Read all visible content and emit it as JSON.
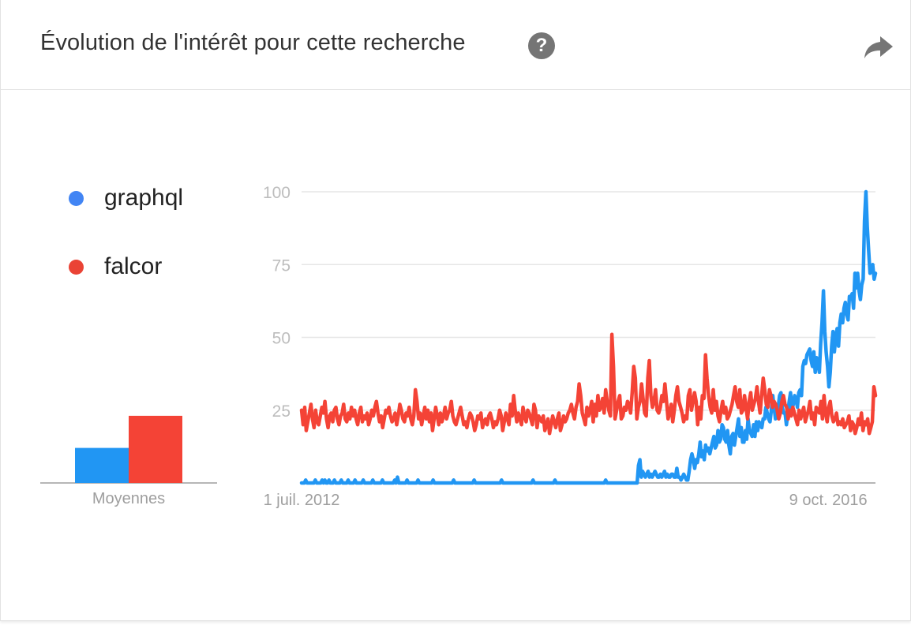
{
  "header": {
    "title": "Évolution de l'intérêt pour cette recherche",
    "help_glyph": "?",
    "help_icon": "help-circle-icon",
    "share_icon": "share-arrow-icon"
  },
  "legend": [
    {
      "label": "graphql",
      "color": "#4285F4"
    },
    {
      "label": "falcor",
      "color": "#EA4335"
    }
  ],
  "averages": {
    "label": "Moyennes",
    "values": [
      {
        "series": "graphql",
        "value": 12,
        "color": "#2196F3"
      },
      {
        "series": "falcor",
        "value": 23,
        "color": "#F44336"
      }
    ]
  },
  "chart_data": {
    "type": "line",
    "x_tick_labels": [
      "1 juil. 2012",
      "9 oct. 2016"
    ],
    "x_range": [
      "2012-07-01",
      "2017-02-26"
    ],
    "ylim": [
      0,
      100
    ],
    "yticks": [
      25,
      50,
      75,
      100
    ],
    "grid": true,
    "series": [
      {
        "name": "graphql",
        "color": "#2196F3",
        "values": [
          0,
          0,
          0,
          1,
          0,
          0,
          0,
          0,
          0,
          0,
          1,
          0,
          0,
          0,
          0,
          1,
          0,
          1,
          0,
          0,
          1,
          0,
          0,
          0,
          1,
          0,
          0,
          0,
          0,
          1,
          0,
          0,
          0,
          0,
          1,
          0,
          0,
          0,
          0,
          1,
          0,
          0,
          0,
          0,
          0,
          1,
          0,
          0,
          0,
          0,
          0,
          0,
          1,
          0,
          0,
          0,
          0,
          0,
          0,
          1,
          0,
          0,
          0,
          0,
          0,
          0,
          0,
          0,
          1,
          0,
          2,
          0,
          0,
          0,
          0,
          0,
          0,
          1,
          0,
          0,
          0,
          0,
          0,
          0,
          0,
          1,
          0,
          0,
          0,
          0,
          0,
          0,
          0,
          0,
          0,
          0,
          1,
          0,
          0,
          0,
          0,
          0,
          0,
          0,
          0,
          0,
          0,
          0,
          0,
          0,
          0,
          1,
          0,
          0,
          0,
          0,
          0,
          0,
          0,
          0,
          0,
          0,
          0,
          0,
          0,
          0,
          1,
          0,
          0,
          0,
          0,
          0,
          0,
          0,
          0,
          0,
          0,
          0,
          0,
          0,
          0,
          0,
          0,
          0,
          0,
          0,
          1,
          0,
          0,
          0,
          0,
          0,
          0,
          0,
          0,
          0,
          0,
          0,
          0,
          0,
          0,
          0,
          0,
          0,
          0,
          0,
          0,
          0,
          0,
          1,
          0,
          0,
          0,
          0,
          0,
          0,
          0,
          0,
          0,
          0,
          0,
          0,
          0,
          0,
          0,
          1,
          0,
          0,
          0,
          0,
          0,
          0,
          0,
          0,
          0,
          0,
          0,
          0,
          0,
          0,
          0,
          0,
          0,
          0,
          0,
          0,
          0,
          0,
          0,
          0,
          0,
          0,
          0,
          0,
          0,
          0,
          0,
          0,
          0,
          0,
          0,
          0,
          1,
          0,
          0,
          0,
          0,
          0,
          0,
          0,
          0,
          0,
          0,
          0,
          0,
          0,
          0,
          0,
          0,
          0,
          0,
          0,
          0,
          0,
          0,
          0,
          6,
          8,
          2,
          4,
          3,
          2,
          3,
          4,
          2,
          3,
          2,
          3,
          4,
          3,
          2,
          2,
          3,
          2,
          3,
          4,
          2,
          3,
          2,
          2,
          3,
          3,
          2,
          2,
          5,
          2,
          2,
          1,
          2,
          3,
          2,
          1,
          1,
          4,
          8,
          10,
          8,
          5,
          8,
          7,
          10,
          14,
          9,
          11,
          8,
          13,
          11,
          12,
          10,
          12,
          14,
          16,
          12,
          13,
          18,
          14,
          15,
          20,
          19,
          15,
          14,
          18,
          13,
          10,
          16,
          17,
          13,
          16,
          19,
          22,
          16,
          19,
          14,
          14,
          18,
          15,
          22,
          18,
          17,
          16,
          20,
          16,
          21,
          18,
          21,
          20,
          19,
          22,
          22,
          26,
          24,
          22,
          21,
          25,
          30,
          26,
          22,
          23,
          26,
          30,
          31,
          26,
          24,
          24,
          20,
          24,
          28,
          31,
          25,
          27,
          30,
          29,
          26,
          31,
          32,
          30,
          40,
          42,
          41,
          44,
          45,
          46,
          42,
          40,
          45,
          38,
          43,
          42,
          38,
          48,
          55,
          66,
          52,
          45,
          40,
          33,
          38,
          47,
          52,
          45,
          50,
          53,
          47,
          55,
          58,
          55,
          60,
          62,
          58,
          56,
          64,
          64,
          65,
          60,
          72,
          67,
          72,
          66,
          63,
          68,
          70,
          90,
          100,
          88,
          80,
          72,
          74,
          75,
          70,
          72
        ]
      },
      {
        "name": "falcor",
        "color": "#F44336",
        "values": [
          25,
          20,
          26,
          18,
          21,
          24,
          27,
          22,
          19,
          25,
          21,
          20,
          23,
          26,
          24,
          28,
          22,
          19,
          23,
          24,
          21,
          25,
          26,
          22,
          20,
          23,
          24,
          27,
          22,
          21,
          24,
          22,
          26,
          23,
          25,
          22,
          20,
          24,
          26,
          21,
          23,
          22,
          24,
          20,
          22,
          25,
          23,
          26,
          28,
          24,
          21,
          23,
          19,
          22,
          25,
          24,
          26,
          23,
          21,
          22,
          24,
          20,
          23,
          27,
          25,
          22,
          21,
          24,
          23,
          26,
          22,
          20,
          23,
          32,
          28,
          22,
          24,
          20,
          23,
          26,
          22,
          25,
          21,
          24,
          18,
          22,
          26,
          23,
          20,
          24,
          21,
          23,
          26,
          22,
          24,
          25,
          28,
          23,
          21,
          20,
          22,
          24,
          26,
          23,
          20,
          21,
          19,
          22,
          24,
          23,
          21,
          18,
          20,
          23,
          22,
          24,
          19,
          21,
          22,
          20,
          23,
          24,
          22,
          19,
          21,
          20,
          22,
          25,
          23,
          18,
          21,
          24,
          22,
          20,
          27,
          23,
          30,
          25,
          21,
          24,
          22,
          20,
          26,
          23,
          21,
          25,
          24,
          22,
          20,
          27,
          25,
          19,
          23,
          22,
          21,
          23,
          18,
          20,
          22,
          17,
          20,
          23,
          21,
          19,
          22,
          24,
          18,
          20,
          23,
          21,
          22,
          24,
          25,
          27,
          24,
          22,
          26,
          28,
          34,
          30,
          24,
          22,
          20,
          26,
          23,
          25,
          28,
          21,
          27,
          23,
          30,
          25,
          26,
          29,
          24,
          32,
          28,
          25,
          23,
          51,
          40,
          22,
          25,
          28,
          30,
          22,
          23,
          26,
          25,
          28,
          27,
          24,
          31,
          40,
          36,
          22,
          26,
          28,
          34,
          29,
          24,
          23,
          36,
          42,
          30,
          26,
          28,
          32,
          25,
          24,
          26,
          30,
          28,
          34,
          28,
          22,
          24,
          27,
          21,
          25,
          30,
          33,
          28,
          26,
          24,
          21,
          23,
          22,
          30,
          32,
          25,
          28,
          31,
          28,
          20,
          26,
          22,
          30,
          29,
          44,
          36,
          30,
          26,
          24,
          32,
          25,
          28,
          23,
          21,
          25,
          28,
          24,
          26,
          22,
          23,
          25,
          27,
          30,
          33,
          28,
          26,
          32,
          24,
          25,
          30,
          26,
          22,
          28,
          31,
          25,
          27,
          29,
          33,
          28,
          24,
          30,
          36,
          32,
          27,
          26,
          32,
          30,
          26,
          28,
          27,
          25,
          22,
          24,
          28,
          30,
          27,
          26,
          22,
          25,
          23,
          26,
          24,
          22,
          20,
          25,
          22,
          24,
          26,
          21,
          23,
          25,
          28,
          22,
          24,
          20,
          26,
          25,
          24,
          28,
          22,
          30,
          24,
          21,
          26,
          28,
          23,
          21,
          22,
          24,
          20,
          21,
          20,
          22,
          19,
          20,
          21,
          23,
          18,
          21,
          20,
          17,
          19,
          22,
          20,
          24,
          18,
          21,
          20,
          22,
          17,
          19,
          21,
          33,
          30
        ]
      }
    ]
  }
}
